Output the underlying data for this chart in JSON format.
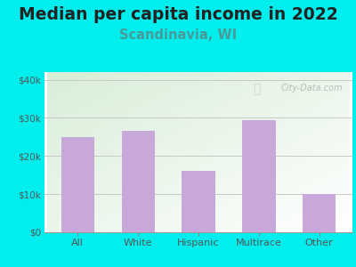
{
  "title": "Median per capita income in 2022",
  "subtitle": "Scandinavia, WI",
  "categories": [
    "All",
    "White",
    "Hispanic",
    "Multirace",
    "Other"
  ],
  "values": [
    25000,
    26500,
    16000,
    29500,
    10000
  ],
  "bar_color": "#c8a8d8",
  "title_fontsize": 13.5,
  "subtitle_fontsize": 10.5,
  "subtitle_color": "#4a9a9a",
  "title_color": "#222222",
  "background_outer": "#00eeee",
  "background_inner_top_left": "#d8eed8",
  "background_inner_bottom_right": "#f8fff8",
  "ylim": [
    0,
    42000
  ],
  "yticks": [
    0,
    10000,
    20000,
    30000,
    40000
  ],
  "ytick_labels": [
    "$0",
    "$10k",
    "$20k",
    "$30k",
    "$40k"
  ],
  "watermark": "City-Data.com",
  "grid_color": "#c8c8c8",
  "tick_color": "#555555"
}
